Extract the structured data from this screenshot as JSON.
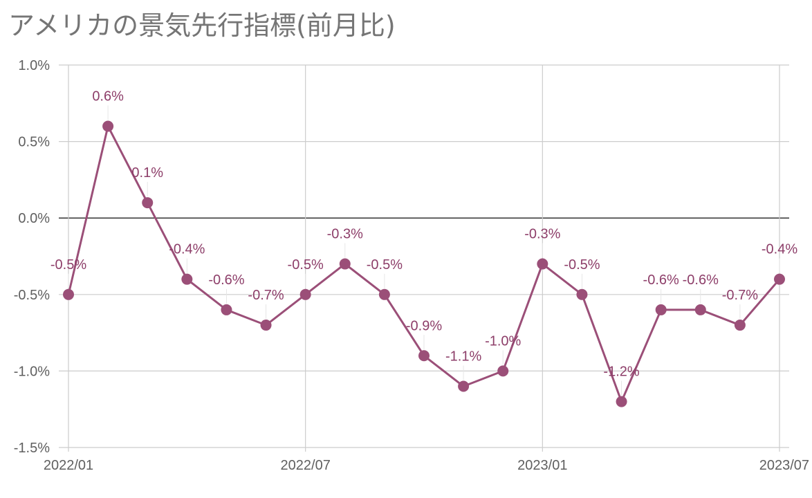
{
  "chart_data": {
    "type": "line",
    "title": "アメリカの景気先行指標(前月比)",
    "x": [
      "2022/01",
      "2022/02",
      "2022/03",
      "2022/04",
      "2022/05",
      "2022/06",
      "2022/07",
      "2022/08",
      "2022/09",
      "2022/10",
      "2022/11",
      "2022/12",
      "2023/01",
      "2023/02",
      "2023/03",
      "2023/04",
      "2023/05",
      "2023/06",
      "2023/07"
    ],
    "series": [
      {
        "values": [
          -0.5,
          0.6,
          0.1,
          -0.4,
          -0.6,
          -0.7,
          -0.5,
          -0.3,
          -0.5,
          -0.9,
          -1.1,
          -1.0,
          -0.3,
          -0.5,
          -1.2,
          -0.6,
          -0.6,
          -0.7,
          -0.4
        ],
        "labels": [
          "-0.5%",
          "0.6%",
          "0.1%",
          "-0.4%",
          "-0.6%",
          "-0.7%",
          "-0.5%",
          "-0.3%",
          "-0.5%",
          "-0.9%",
          "-1.1%",
          "-1.0%",
          "-0.3%",
          "-0.5%",
          "-1.2%",
          "-0.6%",
          "-0.6%",
          "-0.7%",
          "-0.4%"
        ],
        "color": "#9b4f78"
      }
    ],
    "x_ticks": [
      "2022/01",
      "2022/07",
      "2023/01",
      "2023/07"
    ],
    "y_ticks": [
      1.0,
      0.5,
      0.0,
      -0.5,
      -1.0,
      -1.5
    ],
    "y_tick_labels": [
      "1.0%",
      "0.5%",
      "0.0%",
      "-0.5%",
      "-1.0%",
      "-1.5%"
    ],
    "ylim": [
      -1.5,
      1.0
    ],
    "grid": true,
    "legend": "none",
    "zero_line_color": "#333333",
    "grid_color": "#cccccc",
    "label_color": "#8d3e69"
  }
}
